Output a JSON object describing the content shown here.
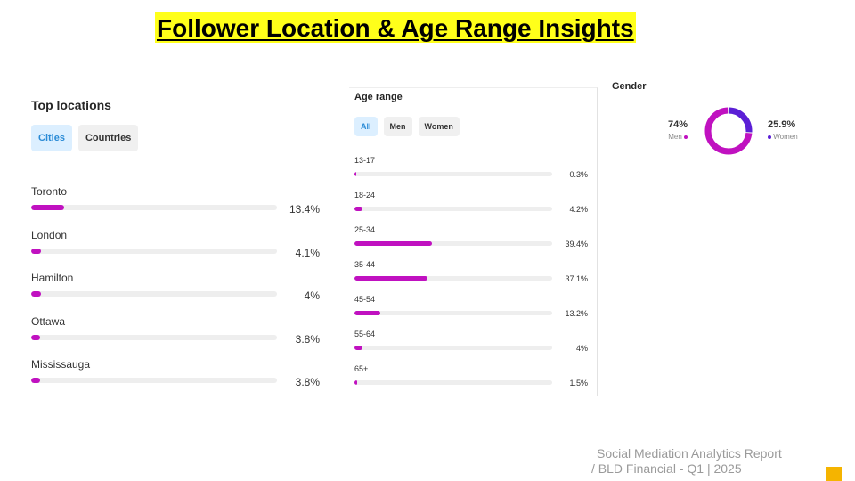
{
  "title": "Follower Location & Age Range Insights",
  "locations": {
    "heading": "Top locations",
    "tabs": [
      "Cities",
      "Countries"
    ],
    "active_tab": "Cities",
    "rows": [
      {
        "name": "Toronto",
        "pct": "13.4%",
        "value": 13.4
      },
      {
        "name": "London",
        "pct": "4.1%",
        "value": 4.1
      },
      {
        "name": "Hamilton",
        "pct": "4%",
        "value": 4
      },
      {
        "name": "Ottawa",
        "pct": "3.8%",
        "value": 3.8
      },
      {
        "name": "Mississauga",
        "pct": "3.8%",
        "value": 3.8
      }
    ]
  },
  "age": {
    "heading": "Age range",
    "tabs": [
      "All",
      "Men",
      "Women"
    ],
    "active_tab": "All",
    "rows": [
      {
        "name": "13-17",
        "pct": "0.3%",
        "value": 0.3
      },
      {
        "name": "18-24",
        "pct": "4.2%",
        "value": 4.2
      },
      {
        "name": "25-34",
        "pct": "39.4%",
        "value": 39.4
      },
      {
        "name": "35-44",
        "pct": "37.1%",
        "value": 37.1
      },
      {
        "name": "45-54",
        "pct": "13.2%",
        "value": 13.2
      },
      {
        "name": "55-64",
        "pct": "4%",
        "value": 4
      },
      {
        "name": "65+",
        "pct": "1.5%",
        "value": 1.5
      }
    ]
  },
  "gender": {
    "heading": "Gender",
    "men": {
      "label": "Men",
      "pct": "74%",
      "value": 74,
      "color": "#c011c0"
    },
    "women": {
      "label": "Women",
      "pct": "25.9%",
      "value": 25.9,
      "color": "#5b1fd6"
    }
  },
  "colors": {
    "bar": "#c011c0",
    "track": "#eeeeee",
    "title_highlight": "#ffff1a",
    "corner": "#f5b400"
  },
  "footer": {
    "line1": "Social Mediation Analytics Report",
    "line2": "/ BLD Financial - Q1  |  2025"
  }
}
